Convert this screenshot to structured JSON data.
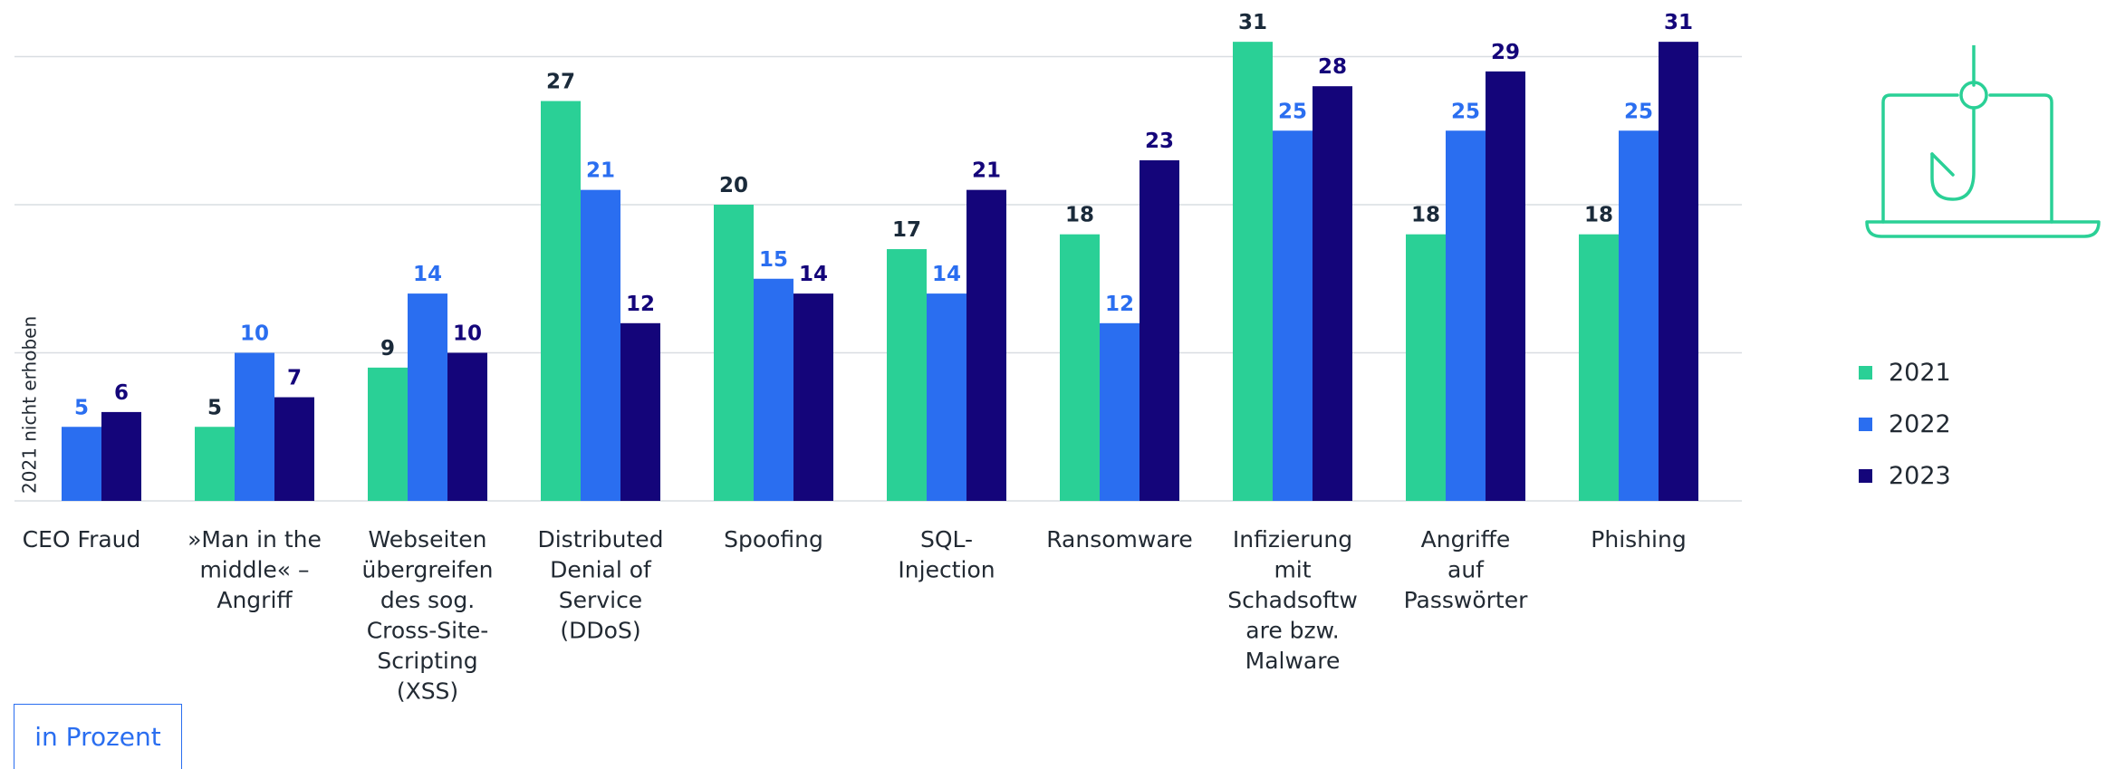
{
  "chart_data": {
    "type": "bar",
    "categories": [
      "CEO Fraud",
      "»Man in the middle« – Angriff",
      "Webseiten übergreifen des sog. Cross-Site-Scripting (XSS)",
      "Distributed Denial of Service (DDoS)",
      "Spoofing",
      "SQL-Injection",
      "Ransomware",
      "Infizierung mit Schadsoftware bzw. Malware",
      "Angriffe auf Passwörter",
      "Phishing"
    ],
    "category_lines": [
      [
        "CEO Fraud"
      ],
      [
        "»Man in the",
        "middle« –",
        "Angriff"
      ],
      [
        "Webseiten",
        "übergreifen",
        "des sog.",
        "Cross-Site-",
        "Scripting",
        "(XSS)"
      ],
      [
        "Distributed",
        "Denial of",
        "Service",
        "(DDoS)"
      ],
      [
        "Spoofing"
      ],
      [
        "SQL-",
        "Injection"
      ],
      [
        "Ransomware"
      ],
      [
        "Infizierung",
        "mit",
        "Schadsoftw",
        "are bzw.",
        "Malware"
      ],
      [
        "Angriffe",
        "auf",
        "Passwörter"
      ],
      [
        "Phishing"
      ]
    ],
    "series": [
      {
        "name": "2021",
        "color": "#2ad096",
        "label_color": "#1a2a3a",
        "values": [
          null,
          5,
          9,
          27,
          20,
          17,
          18,
          31,
          18,
          18
        ]
      },
      {
        "name": "2022",
        "color": "#2a6ef0",
        "label_color": "#2a6ef0",
        "values": [
          5,
          10,
          14,
          21,
          15,
          14,
          12,
          25,
          25,
          25
        ]
      },
      {
        "name": "2023",
        "color": "#14057a",
        "label_color": "#14057a",
        "values": [
          6,
          7,
          10,
          12,
          14,
          21,
          23,
          28,
          29,
          31
        ]
      }
    ],
    "annotations": [
      {
        "category_index": 0,
        "series_index": 0,
        "text": "2021 nicht erhoben"
      }
    ],
    "ylim": [
      0,
      33
    ],
    "gridlines": [
      10,
      20,
      30
    ],
    "title": "",
    "xlabel": "",
    "ylabel": "",
    "legend_position": "right"
  },
  "unit_label": "in Prozent",
  "icon": "phishing-laptop-hook-icon",
  "gridline_color": "#d9dde2"
}
